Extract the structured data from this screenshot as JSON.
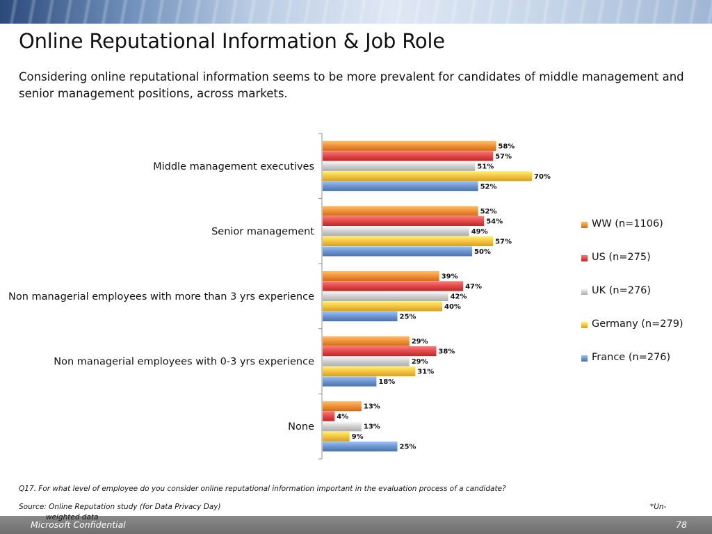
{
  "header": {
    "title": "Online Reputational Information & Job Role",
    "subtitle": "Considering online reputational information seems to be more prevalent for candidates of middle management and senior management positions, across markets."
  },
  "chart_data": {
    "type": "bar",
    "orientation": "horizontal",
    "categories": [
      "Middle management executives",
      "Senior management",
      "Non managerial employees with more than 3 yrs experience",
      "Non managerial employees with 0-3 yrs experience",
      "None"
    ],
    "series": [
      {
        "name": "WW (n=1106)",
        "color": "#f0913a",
        "values": [
          58,
          52,
          39,
          29,
          13
        ],
        "labels": [
          "58%",
          "52%",
          "39%",
          "29%",
          "13%"
        ]
      },
      {
        "name": "US (n=275)",
        "color": "#e04a4a",
        "values": [
          57,
          54,
          47,
          38,
          4
        ],
        "labels": [
          "57%",
          "54%",
          "47%",
          "38%",
          "4%"
        ]
      },
      {
        "name": "UK (n=276)",
        "color": "#cfcfcf",
        "values": [
          51,
          49,
          42,
          29,
          13
        ],
        "labels": [
          "51%",
          "49%",
          "42%",
          "29%",
          "13%"
        ]
      },
      {
        "name": "Germany (n=279)",
        "color": "#f5c443",
        "values": [
          70,
          57,
          40,
          31,
          9
        ],
        "labels": [
          "70%",
          "57%",
          "40%",
          "31%",
          "9%"
        ]
      },
      {
        "name": "France (n=276)",
        "color": "#6f95cf",
        "values": [
          52,
          50,
          25,
          18,
          25
        ],
        "labels": [
          "52%",
          "50%",
          "25%",
          "18%",
          "25%"
        ]
      }
    ],
    "xlim": [
      0,
      100
    ],
    "grid": false,
    "legend_position": "right"
  },
  "footer": {
    "question": "Q17. For what level of employee do you consider online reputational information important in the evaluation process of a candidate?",
    "source": "Source: Online Reputation study (for Data Privacy Day)",
    "note": "*Un-",
    "note_cont": "weighted data",
    "confidential": "Microsoft Confidential",
    "page_number": "78"
  }
}
